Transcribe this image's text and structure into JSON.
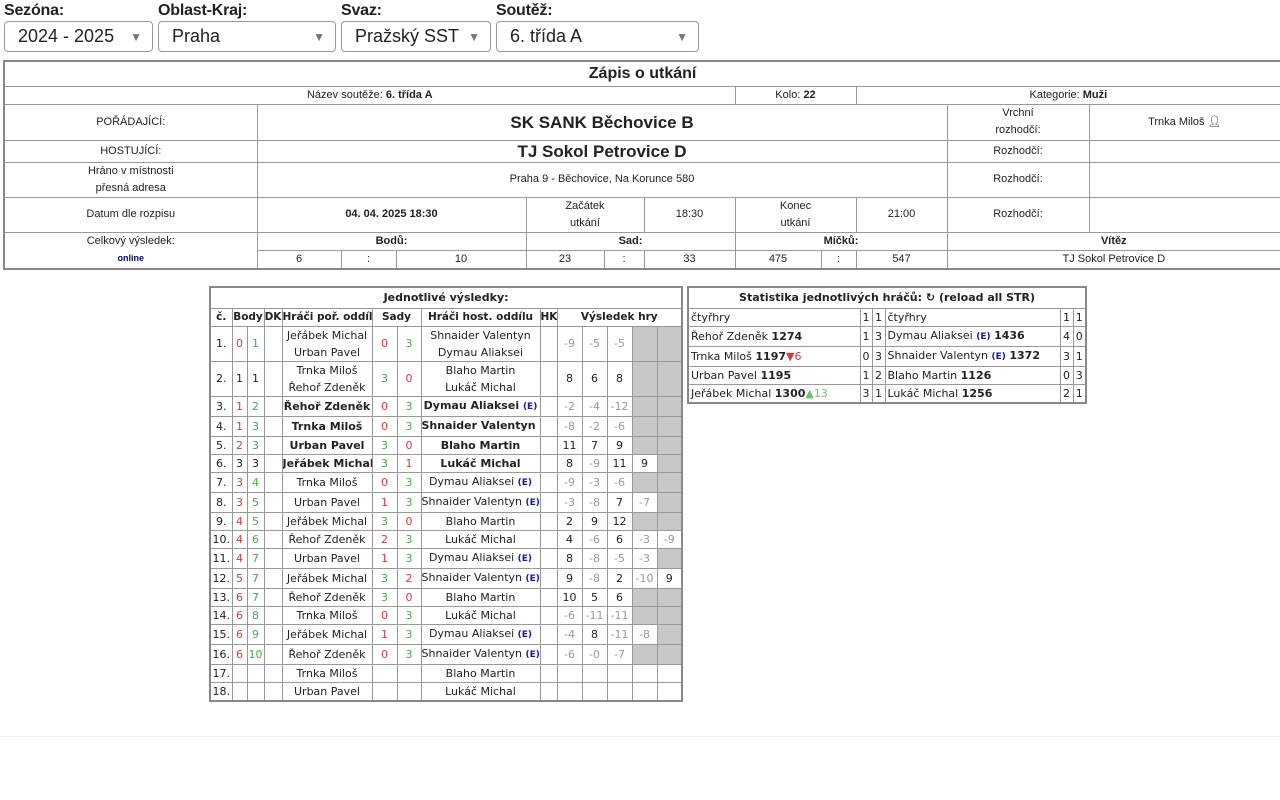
{
  "filters": [
    {
      "label": "Sezóna:",
      "value": "2024 - 2025",
      "width": 149
    },
    {
      "label": "Oblast-Kraj:",
      "value": "Praha",
      "width": 178
    },
    {
      "label": "Svaz:",
      "value": "Pražský SST",
      "width": 150
    },
    {
      "label": "Soutěž:",
      "value": "6. třída A",
      "width": 203
    }
  ],
  "zapis": {
    "title": "Zápis o utkání",
    "nazev_label": "Název soutěže:",
    "nazev": "6. třída A",
    "kolo_label": "Kolo:",
    "kolo": "22",
    "kategorie_label": "Kategorie:",
    "kategorie": "Muži",
    "poradajici_label": "POŘÁDAJÍCÍ:",
    "poradajici": "SK SANK Běchovice B",
    "hostujici_label": "HOSTUJÍCÍ:",
    "hostujici": "TJ Sokol Petrovice D",
    "vrchni_label_1": "Vrchní",
    "vrchni_label_2": "rozhodčí:",
    "vrchni": "Trnka Miloš",
    "rozhodci_label": "Rozhodčí:",
    "misto_label_1": "Hráno v místnosti",
    "misto_label_2": "přesná adresa",
    "misto": "Praha 9 - Běchovice, Na Korunce 580",
    "datum_label": "Datum dle rozpisu",
    "datum": "04. 04. 2025 18:30",
    "zacatek_label_1": "Začátek",
    "zacatek_label_2": "utkání",
    "zacatek": "18:30",
    "konec_label_1": "Konec",
    "konec_label_2": "utkání",
    "konec": "21:00",
    "celkovy_label": "Celkový výsledek:",
    "online": "online",
    "bodu_label": "Bodů:",
    "bodu_home": "6",
    "bodu_guest": "10",
    "sad_label": "Sad:",
    "sad_home": "23",
    "sad_guest": "33",
    "micku_label": "Míčků:",
    "micku_home": "475",
    "micku_guest": "547",
    "sep": ":",
    "vitez_label": "Vítěz",
    "vitez": "TJ Sokol Petrovice D"
  },
  "vysledky": {
    "title": "Jednotlivé výsledky:",
    "headers": {
      "c": "č.",
      "body": "Body",
      "dk": "DK",
      "home": "Hráči poř. oddílu",
      "sady": "Sady",
      "guest": "Hráči host. oddílu",
      "hk": "HK",
      "hry": "Výsledek hry"
    },
    "e_badge": "(E)",
    "rows": [
      {
        "n": "1.",
        "bh": "0",
        "bg": "1",
        "home": [
          "Jeřábek Michal",
          "Urban Pavel"
        ],
        "sh": "0",
        "sg": "3",
        "guest": [
          "Shnaider Valentyn",
          "Dymau Aliaksei"
        ],
        "e": false,
        "bold": false,
        "games": [
          "-9",
          "-5",
          "-5"
        ]
      },
      {
        "n": "2.",
        "bh": "1",
        "bg": "1",
        "home": [
          "Trnka Miloš",
          "Řehoř Zdeněk"
        ],
        "sh": "3",
        "sg": "0",
        "guest": [
          "Blaho Martin",
          "Lukáč Michal"
        ],
        "e": false,
        "bold": false,
        "games": [
          "8",
          "6",
          "8"
        ]
      },
      {
        "n": "3.",
        "bh": "1",
        "bg": "2",
        "home": [
          "Řehoř Zdeněk"
        ],
        "sh": "0",
        "sg": "3",
        "guest": [
          "Dymau Aliaksei"
        ],
        "e": true,
        "bold": true,
        "games": [
          "-2",
          "-4",
          "-12"
        ]
      },
      {
        "n": "4.",
        "bh": "1",
        "bg": "3",
        "home": [
          "Trnka Miloš"
        ],
        "sh": "0",
        "sg": "3",
        "guest": [
          "Shnaider Valentyn"
        ],
        "e": true,
        "bold": true,
        "games": [
          "-8",
          "-2",
          "-6"
        ]
      },
      {
        "n": "5.",
        "bh": "2",
        "bg": "3",
        "home": [
          "Urban Pavel"
        ],
        "sh": "3",
        "sg": "0",
        "guest": [
          "Blaho Martin"
        ],
        "e": false,
        "bold": true,
        "games": [
          "11",
          "7",
          "9"
        ]
      },
      {
        "n": "6.",
        "bh": "3",
        "bg": "3",
        "home": [
          "Jeřábek Michal"
        ],
        "sh": "3",
        "sg": "1",
        "guest": [
          "Lukáč Michal"
        ],
        "e": false,
        "bold": true,
        "games": [
          "8",
          "-9",
          "11",
          "9"
        ]
      },
      {
        "n": "7.",
        "bh": "3",
        "bg": "4",
        "home": [
          "Trnka Miloš"
        ],
        "sh": "0",
        "sg": "3",
        "guest": [
          "Dymau Aliaksei"
        ],
        "e": true,
        "bold": false,
        "games": [
          "-9",
          "-3",
          "-6"
        ]
      },
      {
        "n": "8.",
        "bh": "3",
        "bg": "5",
        "home": [
          "Urban Pavel"
        ],
        "sh": "1",
        "sg": "3",
        "guest": [
          "Shnaider Valentyn"
        ],
        "e": true,
        "bold": false,
        "games": [
          "-3",
          "-8",
          "7",
          "-7"
        ]
      },
      {
        "n": "9.",
        "bh": "4",
        "bg": "5",
        "home": [
          "Jeřábek Michal"
        ],
        "sh": "3",
        "sg": "0",
        "guest": [
          "Blaho Martin"
        ],
        "e": false,
        "bold": false,
        "games": [
          "2",
          "9",
          "12"
        ]
      },
      {
        "n": "10.",
        "bh": "4",
        "bg": "6",
        "home": [
          "Řehoř Zdeněk"
        ],
        "sh": "2",
        "sg": "3",
        "guest": [
          "Lukáč Michal"
        ],
        "e": false,
        "bold": false,
        "games": [
          "4",
          "-6",
          "6",
          "-3",
          "-9"
        ]
      },
      {
        "n": "11.",
        "bh": "4",
        "bg": "7",
        "home": [
          "Urban Pavel"
        ],
        "sh": "1",
        "sg": "3",
        "guest": [
          "Dymau Aliaksei"
        ],
        "e": true,
        "bold": false,
        "games": [
          "8",
          "-8",
          "-5",
          "-3"
        ]
      },
      {
        "n": "12.",
        "bh": "5",
        "bg": "7",
        "home": [
          "Jeřábek Michal"
        ],
        "sh": "3",
        "sg": "2",
        "guest": [
          "Shnaider Valentyn"
        ],
        "e": true,
        "bold": false,
        "games": [
          "9",
          "-8",
          "2",
          "-10",
          "9"
        ]
      },
      {
        "n": "13.",
        "bh": "6",
        "bg": "7",
        "home": [
          "Řehoř Zdeněk"
        ],
        "sh": "3",
        "sg": "0",
        "guest": [
          "Blaho Martin"
        ],
        "e": false,
        "bold": false,
        "games": [
          "10",
          "5",
          "6"
        ]
      },
      {
        "n": "14.",
        "bh": "6",
        "bg": "8",
        "home": [
          "Trnka Miloš"
        ],
        "sh": "0",
        "sg": "3",
        "guest": [
          "Lukáč Michal"
        ],
        "e": false,
        "bold": false,
        "games": [
          "-6",
          "-11",
          "-11"
        ]
      },
      {
        "n": "15.",
        "bh": "6",
        "bg": "9",
        "home": [
          "Jeřábek Michal"
        ],
        "sh": "1",
        "sg": "3",
        "guest": [
          "Dymau Aliaksei"
        ],
        "e": true,
        "bold": false,
        "games": [
          "-4",
          "8",
          "-11",
          "-8"
        ]
      },
      {
        "n": "16.",
        "bh": "6",
        "bg": "10",
        "home": [
          "Řehoř Zdeněk"
        ],
        "sh": "0",
        "sg": "3",
        "guest": [
          "Shnaider Valentyn"
        ],
        "e": true,
        "bold": false,
        "games": [
          "-6",
          "-0",
          "-7"
        ]
      },
      {
        "n": "17.",
        "bh": "",
        "bg": "",
        "home": [
          "Trnka Miloš"
        ],
        "sh": "",
        "sg": "",
        "guest": [
          "Blaho Martin"
        ],
        "e": false,
        "bold": false,
        "games": []
      },
      {
        "n": "18.",
        "bh": "",
        "bg": "",
        "home": [
          "Urban Pavel"
        ],
        "sh": "",
        "sg": "",
        "guest": [
          "Lukáč Michal"
        ],
        "e": false,
        "bold": false,
        "games": []
      }
    ]
  },
  "statistika": {
    "title": "Statistika jednotlivých hráčů:",
    "reload_icon": "↻",
    "reload_label": "(reload all STR)",
    "e_badge": "(E)",
    "rows": [
      {
        "hname": "čtyřhry",
        "hrating": "",
        "hdelta": "",
        "hdir": "",
        "hw": "1",
        "hl": "1",
        "gname": "čtyřhry",
        "ge": false,
        "grating": "",
        "gw": "1",
        "gl": "1"
      },
      {
        "hname": "Řehoř Zdeněk",
        "hrating": "1274",
        "hdelta": "",
        "hdir": "",
        "hw": "1",
        "hl": "3",
        "gname": "Dymau Aliaksei",
        "ge": true,
        "grating": "1436",
        "gw": "4",
        "gl": "0"
      },
      {
        "hname": "Trnka Miloš",
        "hrating": "1197",
        "hdelta": "6",
        "hdir": "down",
        "hw": "0",
        "hl": "3",
        "gname": "Shnaider Valentyn",
        "ge": true,
        "grating": "1372",
        "gw": "3",
        "gl": "1"
      },
      {
        "hname": "Urban Pavel",
        "hrating": "1195",
        "hdelta": "",
        "hdir": "",
        "hw": "1",
        "hl": "2",
        "gname": "Blaho Martin",
        "ge": false,
        "grating": "1126",
        "gw": "0",
        "gl": "3"
      },
      {
        "hname": "Jeřábek Michal",
        "hrating": "1300",
        "hdelta": "13",
        "hdir": "up",
        "hw": "3",
        "hl": "1",
        "gname": "Lukáč Michal",
        "ge": false,
        "grating": "1256",
        "gw": "2",
        "gl": "1"
      }
    ]
  }
}
